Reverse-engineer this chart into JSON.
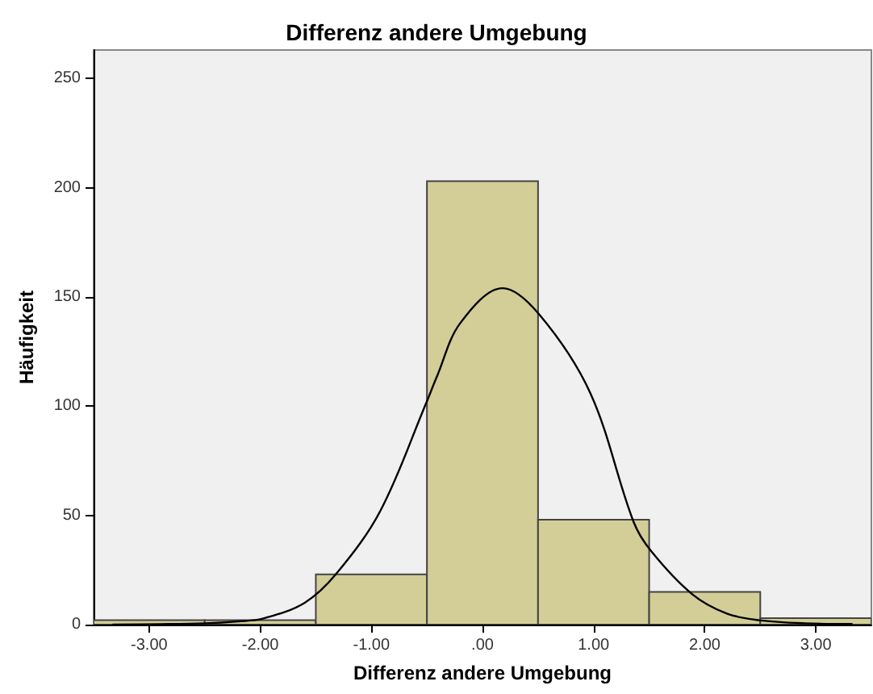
{
  "chart_data": {
    "type": "histogram",
    "title": "Differenz andere Umgebung",
    "xlabel": "Differenz andere Umgebung",
    "ylabel": "Häufigkeit",
    "bins": [
      -3.5,
      -2.5,
      -1.5,
      -0.5,
      0.5,
      1.5,
      2.5,
      3.5
    ],
    "series": [
      {
        "type": "histogram",
        "color": "#d3ce97",
        "values": [
          2,
          2,
          23,
          203,
          48,
          15,
          3
        ]
      },
      {
        "type": "line",
        "color": "#000000",
        "marker": "none",
        "x": [
          -3.33,
          -2.9,
          -2.5,
          -2.2,
          -1.98,
          -1.6,
          -1.31,
          -0.92,
          -0.51,
          -0.41,
          -0.2,
          0.18,
          0.51,
          0.97,
          1.36,
          1.52,
          1.89,
          2.2,
          2.49,
          2.9,
          3.33
        ],
        "values": [
          0,
          0.2,
          0.6,
          1.5,
          2.7,
          10,
          23.6,
          52,
          101,
          113.6,
          138,
          154,
          142,
          106,
          47,
          33.5,
          13.8,
          5,
          2,
          0.6,
          0.3
        ]
      }
    ],
    "xlim": [
      -3.5,
      3.5
    ],
    "xticks": [
      {
        "value": -3,
        "label": "-3.00"
      },
      {
        "value": -2,
        "label": "-2.00"
      },
      {
        "value": -1,
        "label": "-1.00"
      },
      {
        "value": 0,
        "label": ".00"
      },
      {
        "value": 1,
        "label": "1.00"
      },
      {
        "value": 2,
        "label": "2.00"
      },
      {
        "value": 3,
        "label": "3.00"
      }
    ],
    "ylim": [
      0,
      263
    ],
    "yticks": [
      0,
      50,
      100,
      150,
      200,
      250
    ],
    "grid": false
  }
}
